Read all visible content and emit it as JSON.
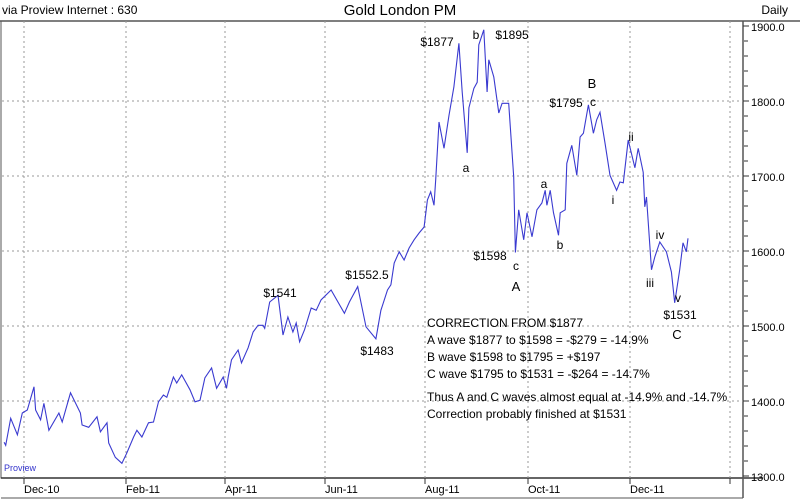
{
  "header": {
    "source": "via Proview Internet : 630",
    "title": "Gold London PM",
    "period": "Daily"
  },
  "watermark": "Proview",
  "colors": {
    "line": "#3a3ad0",
    "grid": "#999999",
    "watermark": "#3333cc",
    "axis": "#555555"
  },
  "chart_data": {
    "type": "line",
    "title": "Gold London PM",
    "xlabel": "",
    "ylabel": "",
    "ylim": [
      1300,
      1900
    ],
    "y_ticks": [
      "1300.0",
      "1400.0",
      "1500.0",
      "1600.0",
      "1700.0",
      "1800.0",
      "1900.0"
    ],
    "x_ticks": [
      "Dec-10",
      "Feb-11",
      "Apr-11",
      "Jun-11",
      "Aug-11",
      "Oct-11",
      "Dec-11"
    ],
    "grid": true,
    "series": [
      {
        "points": [
          [
            "2010-11-19",
            1345
          ],
          [
            "2010-11-20",
            1341
          ],
          [
            "2010-11-23",
            1377
          ],
          [
            "2010-11-27",
            1355
          ],
          [
            "2010-11-30",
            1384
          ],
          [
            "2010-12-03",
            1388
          ],
          [
            "2010-12-07",
            1419
          ],
          [
            "2010-12-08",
            1388
          ],
          [
            "2010-12-11",
            1375
          ],
          [
            "2010-12-13",
            1397
          ],
          [
            "2010-12-16",
            1361
          ],
          [
            "2010-12-22",
            1384
          ],
          [
            "2010-12-24",
            1372
          ],
          [
            "2010-12-29",
            1411
          ],
          [
            "2011-01-04",
            1384
          ],
          [
            "2011-01-05",
            1368
          ],
          [
            "2011-01-09",
            1365
          ],
          [
            "2011-01-14",
            1379
          ],
          [
            "2011-01-16",
            1359
          ],
          [
            "2011-01-20",
            1371
          ],
          [
            "2011-01-21",
            1344
          ],
          [
            "2011-01-25",
            1325
          ],
          [
            "2011-01-29",
            1317
          ],
          [
            "2011-02-01",
            1331
          ],
          [
            "2011-02-05",
            1352
          ],
          [
            "2011-02-07",
            1361
          ],
          [
            "2011-02-10",
            1352
          ],
          [
            "2011-02-14",
            1371
          ],
          [
            "2011-02-17",
            1372
          ],
          [
            "2011-02-20",
            1399
          ],
          [
            "2011-02-23",
            1408
          ],
          [
            "2011-02-25",
            1405
          ],
          [
            "2011-03-01",
            1432
          ],
          [
            "2011-03-03",
            1424
          ],
          [
            "2011-03-06",
            1435
          ],
          [
            "2011-03-11",
            1415
          ],
          [
            "2011-03-14",
            1399
          ],
          [
            "2011-03-17",
            1401
          ],
          [
            "2011-03-20",
            1431
          ],
          [
            "2011-03-24",
            1444
          ],
          [
            "2011-03-27",
            1417
          ],
          [
            "2011-03-31",
            1432
          ],
          [
            "2011-04-02",
            1417
          ],
          [
            "2011-04-03",
            1432
          ],
          [
            "2011-04-05",
            1455
          ],
          [
            "2011-04-09",
            1468
          ],
          [
            "2011-04-11",
            1451
          ],
          [
            "2011-04-15",
            1471
          ],
          [
            "2011-04-18",
            1492
          ],
          [
            "2011-04-21",
            1501
          ],
          [
            "2011-04-24",
            1501
          ],
          [
            "2011-04-25",
            1497
          ],
          [
            "2011-04-28",
            1532
          ],
          [
            "2011-05-03",
            1541
          ],
          [
            "2011-05-06",
            1488
          ],
          [
            "2011-05-09",
            1512
          ],
          [
            "2011-05-12",
            1492
          ],
          [
            "2011-05-14",
            1504
          ],
          [
            "2011-05-16",
            1479
          ],
          [
            "2011-05-19",
            1495
          ],
          [
            "2011-05-23",
            1524
          ],
          [
            "2011-05-26",
            1521
          ],
          [
            "2011-05-29",
            1535
          ],
          [
            "2011-06-04",
            1548
          ],
          [
            "2011-06-12",
            1517
          ],
          [
            "2011-06-15",
            1532
          ],
          [
            "2011-06-20",
            1552.5
          ],
          [
            "2011-06-23",
            1521
          ],
          [
            "2011-06-25",
            1499
          ],
          [
            "2011-07-01",
            1483
          ],
          [
            "2011-07-04",
            1521
          ],
          [
            "2011-07-08",
            1548
          ],
          [
            "2011-07-10",
            1555
          ],
          [
            "2011-07-12",
            1584
          ],
          [
            "2011-07-15",
            1599
          ],
          [
            "2011-07-18",
            1588
          ],
          [
            "2011-07-21",
            1604
          ],
          [
            "2011-07-24",
            1615
          ],
          [
            "2011-07-27",
            1624
          ],
          [
            "2011-07-30",
            1632
          ],
          [
            "2011-08-01",
            1668
          ],
          [
            "2011-08-03",
            1679
          ],
          [
            "2011-08-05",
            1661
          ],
          [
            "2011-08-06",
            1695
          ],
          [
            "2011-08-08",
            1772
          ],
          [
            "2011-08-11",
            1737
          ],
          [
            "2011-08-14",
            1781
          ],
          [
            "2011-08-17",
            1819
          ],
          [
            "2011-08-20",
            1877
          ],
          [
            "2011-08-22",
            1812
          ],
          [
            "2011-08-25",
            1731
          ],
          [
            "2011-08-26",
            1791
          ],
          [
            "2011-08-29",
            1817
          ],
          [
            "2011-08-31",
            1825
          ],
          [
            "2011-09-01",
            1875
          ],
          [
            "2011-09-04",
            1895
          ],
          [
            "2011-09-06",
            1812
          ],
          [
            "2011-09-07",
            1855
          ],
          [
            "2011-09-10",
            1832
          ],
          [
            "2011-09-13",
            1784
          ],
          [
            "2011-09-15",
            1797
          ],
          [
            "2011-09-19",
            1797
          ],
          [
            "2011-09-22",
            1699
          ],
          [
            "2011-09-23",
            1598
          ],
          [
            "2011-09-25",
            1655
          ],
          [
            "2011-09-28",
            1615
          ],
          [
            "2011-09-30",
            1651
          ],
          [
            "2011-10-03",
            1619
          ],
          [
            "2011-10-06",
            1655
          ],
          [
            "2011-10-09",
            1664
          ],
          [
            "2011-10-11",
            1681
          ],
          [
            "2011-10-12",
            1661
          ],
          [
            "2011-10-14",
            1681
          ],
          [
            "2011-10-16",
            1651
          ],
          [
            "2011-10-19",
            1621
          ],
          [
            "2011-10-20",
            1651
          ],
          [
            "2011-10-23",
            1655
          ],
          [
            "2011-10-24",
            1717
          ],
          [
            "2011-10-27",
            1741
          ],
          [
            "2011-10-30",
            1701
          ],
          [
            "2011-11-01",
            1752
          ],
          [
            "2011-11-03",
            1757
          ],
          [
            "2011-11-06",
            1795
          ],
          [
            "2011-11-09",
            1757
          ],
          [
            "2011-11-11",
            1775
          ],
          [
            "2011-11-13",
            1785
          ],
          [
            "2011-11-16",
            1744
          ],
          [
            "2011-11-19",
            1701
          ],
          [
            "2011-11-23",
            1681
          ],
          [
            "2011-11-25",
            1692
          ],
          [
            "2011-11-27",
            1691
          ],
          [
            "2011-11-30",
            1748
          ],
          [
            "2011-12-04",
            1711
          ],
          [
            "2011-12-06",
            1737
          ],
          [
            "2011-12-09",
            1705
          ],
          [
            "2011-12-10",
            1659
          ],
          [
            "2011-12-11",
            1672
          ],
          [
            "2011-12-14",
            1575
          ],
          [
            "2011-12-16",
            1592
          ],
          [
            "2011-12-19",
            1612
          ],
          [
            "2011-12-23",
            1599
          ],
          [
            "2011-12-26",
            1572
          ],
          [
            "2011-12-28",
            1531
          ],
          [
            "2011-12-31",
            1575
          ],
          [
            "2012-01-02",
            1611
          ],
          [
            "2012-01-04",
            1599
          ],
          [
            "2012-01-05",
            1617
          ]
        ]
      }
    ],
    "annotations": [
      "$1877",
      "b",
      "$1895",
      "a",
      "$1598",
      "c",
      "A",
      "$1541",
      "$1552.5",
      "$1483",
      "B",
      "c",
      "$1795",
      "a",
      "b",
      "i",
      "ii",
      "iii",
      "iv",
      "v",
      "$1531",
      "C"
    ],
    "notes": [
      "CORRECTION FROM $1877",
      "A wave  $1877 to $1598 = -$279 = -14.9%",
      "B wave $1598 to $1795 = +$197",
      "C wave  $1795 to $1531 = -$264 = -14.7%",
      "Thus A and C waves almost equal at -14.9% and -14.7%",
      "Correction probably finished at $1531"
    ]
  }
}
